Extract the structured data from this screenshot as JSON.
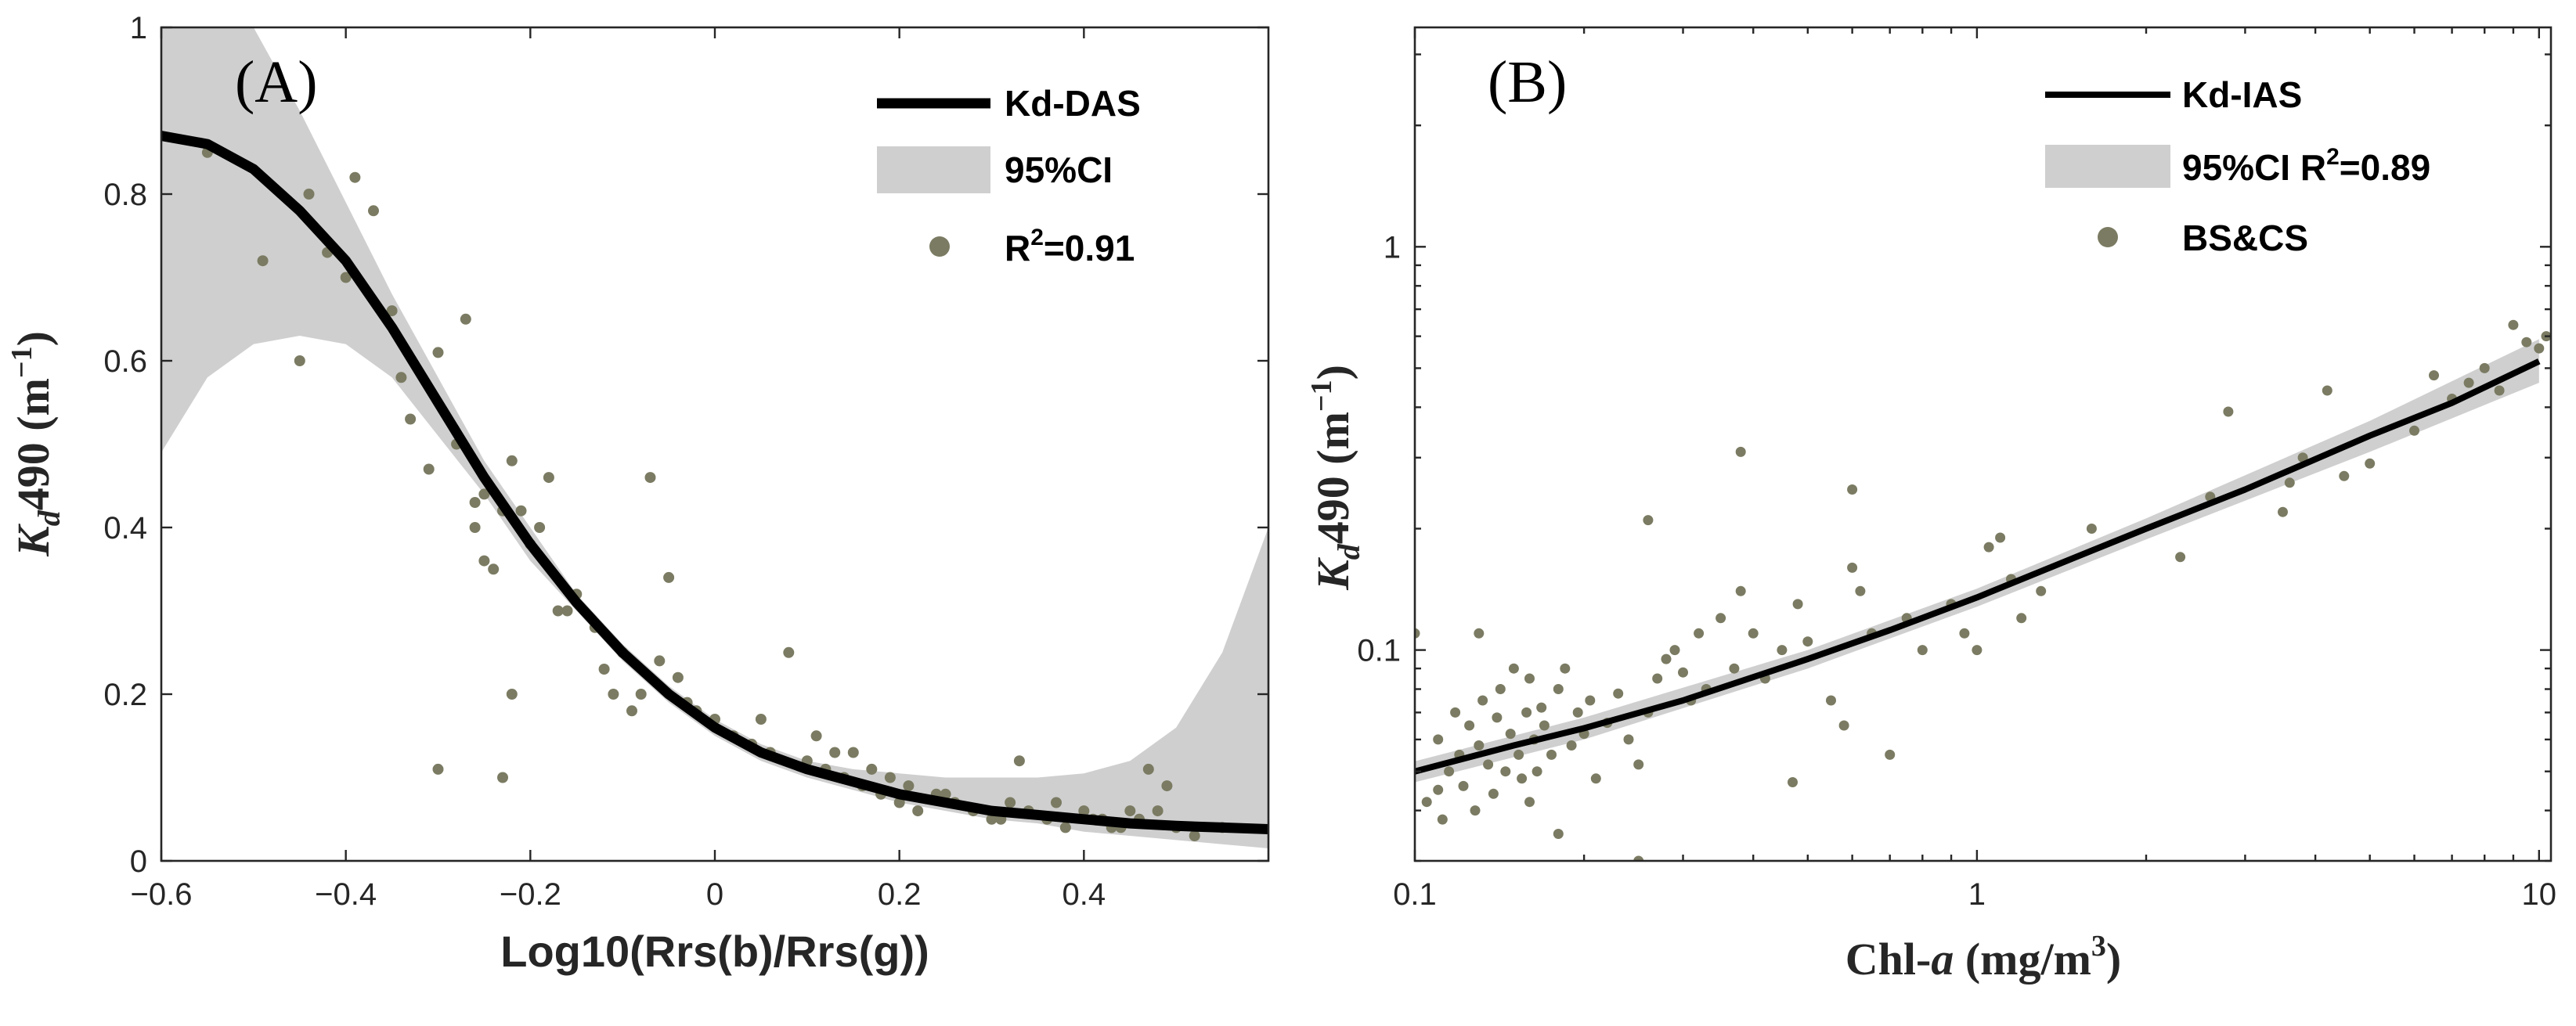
{
  "colors": {
    "band": "#cfcfcf",
    "points": "#7b7b63",
    "line": "#000000"
  },
  "chart_data": [
    {
      "type": "scatter",
      "panel_label": "(A)",
      "xlabel": "Log10(Rrs(b)/Rrs(g))",
      "ylabel_main": "K",
      "ylabel_sub": "d",
      "ylabel_rest": "490 (m",
      "ylabel_sup": "−1",
      "ylabel_close": ")",
      "xlim": [
        -0.6,
        0.6
      ],
      "ylim": [
        0,
        1
      ],
      "x_ticks": [
        -0.6,
        -0.4,
        -0.2,
        0,
        0.2,
        0.4
      ],
      "x_tick_labels": [
        "−0.6",
        "−0.4",
        "−0.2",
        "0",
        "0.2",
        "0.4"
      ],
      "y_ticks": [
        0,
        0.2,
        0.4,
        0.6,
        0.8,
        1
      ],
      "y_tick_labels": [
        "0",
        "0.2",
        "0.4",
        "0.6",
        "0.8",
        "1"
      ],
      "legend": {
        "line": "Kd-DAS",
        "band": "95%CI",
        "points_base": "R",
        "points_sup": "2",
        "points_rest": "=0.91"
      },
      "fit": {
        "x": [
          -0.6,
          -0.55,
          -0.5,
          -0.45,
          -0.4,
          -0.35,
          -0.3,
          -0.25,
          -0.2,
          -0.15,
          -0.1,
          -0.05,
          0,
          0.05,
          0.1,
          0.15,
          0.2,
          0.25,
          0.3,
          0.35,
          0.4,
          0.45,
          0.5,
          0.55,
          0.6
        ],
        "y": [
          0.87,
          0.86,
          0.83,
          0.78,
          0.72,
          0.64,
          0.55,
          0.46,
          0.38,
          0.31,
          0.25,
          0.2,
          0.16,
          0.13,
          0.11,
          0.095,
          0.08,
          0.07,
          0.06,
          0.055,
          0.05,
          0.045,
          0.042,
          0.04,
          0.038
        ]
      },
      "ci": {
        "x": [
          -0.6,
          -0.55,
          -0.5,
          -0.45,
          -0.4,
          -0.35,
          -0.3,
          -0.25,
          -0.2,
          -0.15,
          -0.1,
          -0.05,
          0,
          0.05,
          0.1,
          0.15,
          0.2,
          0.25,
          0.3,
          0.35,
          0.4,
          0.45,
          0.5,
          0.55,
          0.6
        ],
        "upper": [
          1.25,
          1.1,
          1.0,
          0.9,
          0.79,
          0.68,
          0.58,
          0.48,
          0.4,
          0.32,
          0.26,
          0.21,
          0.17,
          0.14,
          0.12,
          0.11,
          0.105,
          0.1,
          0.1,
          0.1,
          0.105,
          0.12,
          0.16,
          0.25,
          0.4
        ],
        "lower": [
          0.49,
          0.58,
          0.62,
          0.63,
          0.62,
          0.58,
          0.51,
          0.44,
          0.36,
          0.3,
          0.24,
          0.19,
          0.15,
          0.12,
          0.1,
          0.085,
          0.07,
          0.06,
          0.05,
          0.045,
          0.035,
          0.03,
          0.025,
          0.02,
          0.015
        ]
      },
      "points": {
        "x": [
          -0.55,
          -0.49,
          -0.45,
          -0.44,
          -0.42,
          -0.4,
          -0.39,
          -0.37,
          -0.35,
          -0.34,
          -0.33,
          -0.31,
          -0.3,
          -0.28,
          -0.27,
          -0.26,
          -0.25,
          -0.25,
          -0.24,
          -0.23,
          -0.22,
          -0.2,
          -0.19,
          -0.18,
          -0.16,
          -0.15,
          -0.13,
          -0.12,
          -0.1,
          -0.08,
          -0.07,
          -0.06,
          -0.05,
          -0.04,
          -0.03,
          -0.02,
          0.0,
          0.02,
          0.04,
          0.06,
          0.08,
          0.1,
          0.12,
          0.14,
          0.15,
          0.16,
          0.17,
          0.18,
          0.19,
          0.2,
          0.21,
          0.22,
          0.24,
          0.26,
          0.28,
          0.3,
          0.32,
          0.34,
          0.36,
          0.38,
          0.4,
          0.42,
          0.44,
          0.46,
          0.48,
          0.5,
          0.52,
          0.55,
          -0.3,
          -0.23,
          -0.22,
          -0.26,
          -0.21,
          -0.17,
          -0.11,
          -0.09,
          0.05,
          0.11,
          0.13,
          0.25,
          0.31,
          0.43,
          0.47,
          0.33,
          0.37,
          0.41,
          0.45,
          0.49
        ],
        "y": [
          0.85,
          0.72,
          0.6,
          0.8,
          0.73,
          0.7,
          0.82,
          0.78,
          0.66,
          0.58,
          0.53,
          0.47,
          0.61,
          0.5,
          0.65,
          0.43,
          0.36,
          0.44,
          0.35,
          0.42,
          0.48,
          0.38,
          0.4,
          0.46,
          0.3,
          0.32,
          0.28,
          0.23,
          0.25,
          0.2,
          0.46,
          0.24,
          0.34,
          0.22,
          0.19,
          0.18,
          0.17,
          0.15,
          0.14,
          0.13,
          0.25,
          0.12,
          0.11,
          0.1,
          0.13,
          0.09,
          0.11,
          0.08,
          0.1,
          0.07,
          0.09,
          0.06,
          0.08,
          0.07,
          0.06,
          0.05,
          0.07,
          0.06,
          0.05,
          0.04,
          0.06,
          0.05,
          0.04,
          0.05,
          0.06,
          0.04,
          0.03,
          0.04,
          0.11,
          0.1,
          0.2,
          0.4,
          0.42,
          0.3,
          0.2,
          0.18,
          0.17,
          0.15,
          0.13,
          0.08,
          0.05,
          0.04,
          0.11,
          0.12,
          0.07,
          0.05,
          0.06,
          0.09
        ]
      }
    },
    {
      "type": "scatter",
      "panel_label": "(B)",
      "xlabel_main": "Chl-",
      "xlabel_italic": "a",
      "xlabel_rest": " (mg/m",
      "xlabel_sup": "3",
      "xlabel_close": ")",
      "ylabel_main": "K",
      "ylabel_sub": "d",
      "ylabel_rest": "490 (m",
      "ylabel_sup": "−1",
      "ylabel_close": ")",
      "xscale": "log",
      "yscale": "log",
      "xlim": [
        0.1,
        10.5
      ],
      "ylim": [
        0.03,
        3.5
      ],
      "x_ticks": [
        0.1,
        1,
        10
      ],
      "x_tick_labels": [
        "0.1",
        "1",
        "10"
      ],
      "y_ticks": [
        0.1,
        1
      ],
      "y_tick_labels": [
        "0.1",
        "1"
      ],
      "legend": {
        "line": "Kd-IAS",
        "band": "95%CI R",
        "band_sup": "2",
        "band_rest": "=0.89",
        "points": "BS&CS"
      },
      "fit": {
        "x": [
          0.1,
          0.15,
          0.2,
          0.3,
          0.5,
          0.7,
          1,
          1.5,
          2,
          3,
          5,
          7,
          10
        ],
        "y": [
          0.05,
          0.058,
          0.064,
          0.075,
          0.095,
          0.112,
          0.135,
          0.17,
          0.2,
          0.25,
          0.34,
          0.41,
          0.52
        ]
      },
      "ci": {
        "x": [
          0.1,
          0.2,
          0.5,
          1,
          2,
          5,
          10
        ],
        "upper": [
          0.053,
          0.068,
          0.1,
          0.142,
          0.212,
          0.37,
          0.59
        ],
        "lower": [
          0.047,
          0.06,
          0.09,
          0.128,
          0.188,
          0.31,
          0.46
        ]
      },
      "points": {
        "x": [
          0.1,
          0.105,
          0.11,
          0.112,
          0.115,
          0.118,
          0.12,
          0.122,
          0.125,
          0.128,
          0.13,
          0.132,
          0.135,
          0.138,
          0.14,
          0.142,
          0.145,
          0.148,
          0.15,
          0.153,
          0.155,
          0.158,
          0.16,
          0.163,
          0.165,
          0.168,
          0.17,
          0.175,
          0.18,
          0.185,
          0.19,
          0.195,
          0.2,
          0.205,
          0.21,
          0.22,
          0.23,
          0.24,
          0.25,
          0.26,
          0.27,
          0.28,
          0.29,
          0.3,
          0.31,
          0.32,
          0.33,
          0.35,
          0.37,
          0.38,
          0.4,
          0.42,
          0.45,
          0.48,
          0.5,
          0.55,
          0.58,
          0.6,
          0.62,
          0.65,
          0.7,
          0.75,
          0.8,
          0.9,
          0.95,
          1.0,
          1.05,
          1.1,
          1.15,
          1.2,
          1.3,
          1.6,
          2.3,
          2.6,
          2.8,
          3.5,
          3.6,
          3.8,
          4.2,
          4.5,
          5.0,
          6.0,
          6.5,
          7.0,
          7.5,
          8.0,
          8.5,
          9.0,
          9.5,
          10.0,
          10.3,
          0.38,
          0.26,
          0.6,
          0.18,
          0.13,
          0.11,
          0.25,
          0.16,
          0.47
        ],
        "y": [
          0.11,
          0.042,
          0.06,
          0.038,
          0.05,
          0.07,
          0.055,
          0.046,
          0.065,
          0.04,
          0.058,
          0.075,
          0.052,
          0.044,
          0.068,
          0.08,
          0.05,
          0.062,
          0.09,
          0.055,
          0.048,
          0.07,
          0.085,
          0.06,
          0.05,
          0.072,
          0.065,
          0.055,
          0.08,
          0.09,
          0.058,
          0.07,
          0.062,
          0.075,
          0.048,
          0.066,
          0.078,
          0.06,
          0.052,
          0.07,
          0.085,
          0.095,
          0.1,
          0.088,
          0.075,
          0.11,
          0.08,
          0.12,
          0.09,
          0.14,
          0.11,
          0.085,
          0.1,
          0.13,
          0.105,
          0.075,
          0.065,
          0.16,
          0.14,
          0.11,
          0.055,
          0.12,
          0.1,
          0.13,
          0.11,
          0.1,
          0.18,
          0.19,
          0.15,
          0.12,
          0.14,
          0.2,
          0.17,
          0.24,
          0.39,
          0.22,
          0.26,
          0.3,
          0.44,
          0.27,
          0.29,
          0.35,
          0.48,
          0.42,
          0.46,
          0.5,
          0.44,
          0.64,
          0.58,
          0.56,
          0.6,
          0.31,
          0.21,
          0.25,
          0.035,
          0.11,
          0.045,
          0.03,
          0.042,
          0.047
        ]
      }
    }
  ]
}
